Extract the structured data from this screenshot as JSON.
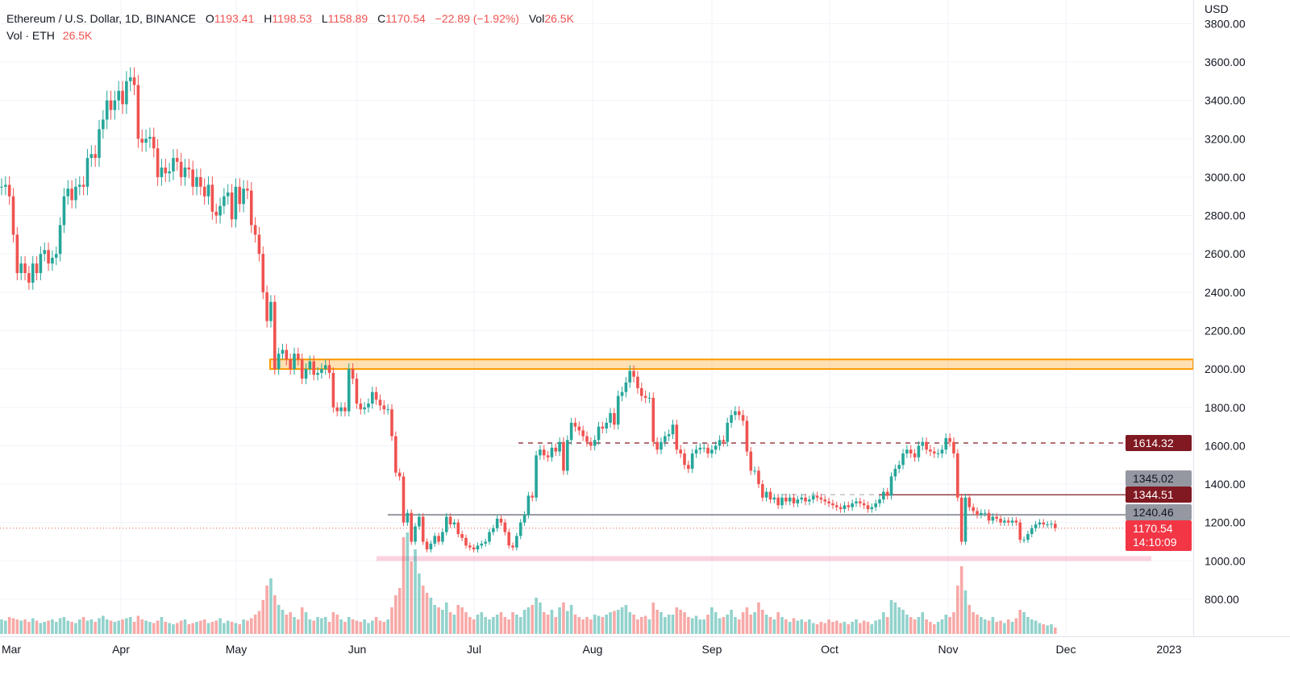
{
  "header": {
    "symbol": "Ethereum / U.S. Dollar, 1D, BINANCE",
    "o_label": "O",
    "o_value": "1193.41",
    "h_label": "H",
    "h_value": "1198.53",
    "l_label": "L",
    "l_value": "1158.89",
    "c_label": "C",
    "c_value": "1170.54",
    "change": "−22.89 (−1.92%)",
    "vol_label": "Vol",
    "vol_value": "26.5K",
    "vol_row_label": "Vol · ETH",
    "vol_row_value": "26.5K"
  },
  "price_axis": {
    "currency": "USD",
    "ticks": [
      "3800.00",
      "3600.00",
      "3400.00",
      "3200.00",
      "3000.00",
      "2800.00",
      "2600.00",
      "2400.00",
      "2200.00",
      "2000.00",
      "1800.00",
      "1600.00",
      "1400.00",
      "1200.00",
      "1000.00",
      "800.00"
    ]
  },
  "price_tags": [
    {
      "value": "1614.32",
      "bg": "#801922",
      "fg": "#ffffff"
    },
    {
      "value": "1345.02",
      "bg": "#9598a1",
      "fg": "#131722"
    },
    {
      "value": "1344.51",
      "bg": "#801922",
      "fg": "#ffffff"
    },
    {
      "value": "1240.46",
      "bg": "#9598a1",
      "fg": "#131722"
    },
    {
      "value": "1170.54",
      "bg": "#f23645",
      "fg": "#ffffff",
      "countdown": "14:10:09"
    }
  ],
  "colors": {
    "up": "#26a69a",
    "down": "#ef5350",
    "zone_resistance": "#ff9800",
    "zone_support": "#f48fb1",
    "level_red": "#801922",
    "level_gray": "#9598a1"
  },
  "chart_data": {
    "type": "candlestick",
    "title": "Ethereum / U.S. Dollar, 1D, BINANCE",
    "x_ticks": [
      "Mar",
      "Apr",
      "May",
      "Jun",
      "Jul",
      "Aug",
      "Sep",
      "Oct",
      "Nov",
      "Dec",
      "2023"
    ],
    "ylim": [
      700,
      3850
    ],
    "y_scale": "linear",
    "grid": true,
    "first_open": 2950,
    "closes": [
      2950,
      2960,
      2900,
      2700,
      2500,
      2550,
      2500,
      2450,
      2550,
      2500,
      2600,
      2620,
      2550,
      2580,
      2600,
      2750,
      2900,
      2940,
      2880,
      2950,
      2960,
      2950,
      3100,
      3120,
      3100,
      3250,
      3300,
      3400,
      3350,
      3400,
      3450,
      3380,
      3500,
      3520,
      3480,
      3200,
      3180,
      3200,
      3210,
      3150,
      3000,
      3050,
      3020,
      3030,
      3100,
      3080,
      3000,
      3050,
      3040,
      2950,
      3000,
      2950,
      2900,
      2960,
      2820,
      2800,
      2850,
      2900,
      2920,
      2780,
      2950,
      2860,
      2940,
      2930,
      2750,
      2700,
      2600,
      2400,
      2250,
      2350,
      2000,
      2080,
      2100,
      2050,
      2000,
      2080,
      2050,
      1950,
      2000,
      2040,
      1970,
      1980,
      2000,
      2020,
      1980,
      1800,
      1780,
      1800,
      1780,
      2000,
      1950,
      1820,
      1790,
      1800,
      1820,
      1880,
      1840,
      1810,
      1790,
      1790,
      1650,
      1460,
      1440,
      1200,
      1250,
      1100,
      1180,
      1230,
      1100,
      1060,
      1090,
      1130,
      1100,
      1150,
      1230,
      1190,
      1200,
      1140,
      1120,
      1080,
      1070,
      1060,
      1080,
      1090,
      1100,
      1150,
      1170,
      1220,
      1200,
      1150,
      1080,
      1070,
      1130,
      1200,
      1240,
      1340,
      1330,
      1550,
      1580,
      1550,
      1540,
      1590,
      1570,
      1620,
      1470,
      1630,
      1720,
      1700,
      1680,
      1650,
      1620,
      1600,
      1630,
      1700,
      1690,
      1720,
      1770,
      1710,
      1860,
      1880,
      1930,
      1990,
      1960,
      1900,
      1860,
      1850,
      1850,
      1620,
      1580,
      1620,
      1650,
      1660,
      1710,
      1580,
      1560,
      1500,
      1480,
      1560,
      1580,
      1590,
      1590,
      1560,
      1580,
      1600,
      1630,
      1620,
      1720,
      1760,
      1780,
      1760,
      1730,
      1570,
      1470,
      1470,
      1400,
      1330,
      1360,
      1320,
      1330,
      1290,
      1330,
      1310,
      1330,
      1300,
      1320,
      1330,
      1310,
      1320,
      1340,
      1330,
      1320,
      1310,
      1300,
      1290,
      1280,
      1270,
      1290,
      1280,
      1300,
      1310,
      1300,
      1290,
      1270,
      1280,
      1300,
      1320,
      1360,
      1340,
      1440,
      1480,
      1500,
      1560,
      1580,
      1560,
      1540,
      1600,
      1620,
      1580,
      1570,
      1560,
      1560,
      1580,
      1640,
      1620,
      1560,
      1330,
      1100,
      1330,
      1280,
      1260,
      1240,
      1250,
      1250,
      1210,
      1230,
      1220,
      1200,
      1210,
      1200,
      1210,
      1200,
      1110,
      1110,
      1140,
      1170,
      1190,
      1200,
      1190,
      1190,
      1193.41,
      1170.54
    ],
    "volumes_k": [
      60,
      55,
      70,
      65,
      60,
      55,
      60,
      50,
      65,
      55,
      45,
      50,
      55,
      60,
      50,
      65,
      70,
      55,
      50,
      45,
      60,
      70,
      55,
      60,
      50,
      65,
      75,
      60,
      55,
      50,
      55,
      60,
      65,
      70,
      50,
      75,
      60,
      55,
      50,
      45,
      55,
      70,
      50,
      45,
      40,
      45,
      55,
      60,
      40,
      45,
      50,
      55,
      60,
      45,
      50,
      55,
      65,
      45,
      55,
      50,
      45,
      40,
      60,
      55,
      65,
      80,
      95,
      140,
      200,
      230,
      160,
      120,
      100,
      80,
      90,
      70,
      60,
      110,
      90,
      60,
      55,
      70,
      65,
      70,
      50,
      90,
      80,
      60,
      50,
      70,
      60,
      55,
      50,
      60,
      45,
      55,
      70,
      55,
      50,
      60,
      110,
      160,
      190,
      400,
      420,
      300,
      350,
      250,
      200,
      170,
      150,
      120,
      110,
      100,
      130,
      90,
      80,
      120,
      110,
      90,
      70,
      60,
      80,
      90,
      70,
      60,
      70,
      80,
      90,
      70,
      60,
      90,
      80,
      70,
      100,
      110,
      120,
      150,
      130,
      90,
      80,
      100,
      70,
      110,
      130,
      95,
      120,
      80,
      70,
      60,
      70,
      60,
      80,
      75,
      70,
      80,
      90,
      95,
      100,
      110,
      120,
      90,
      80,
      60,
      70,
      75,
      60,
      130,
      100,
      90,
      70,
      80,
      80,
      110,
      100,
      90,
      70,
      65,
      75,
      60,
      60,
      80,
      110,
      90,
      65,
      70,
      80,
      100,
      70,
      60,
      90,
      110,
      80,
      90,
      130,
      100,
      80,
      70,
      60,
      90,
      70,
      60,
      50,
      65,
      55,
      60,
      50,
      60,
      45,
      40,
      50,
      45,
      60,
      50,
      55,
      45,
      50,
      40,
      50,
      60,
      45,
      55,
      50,
      40,
      55,
      60,
      90,
      70,
      140,
      130,
      110,
      100,
      80,
      70,
      60,
      70,
      90,
      60,
      50,
      40,
      50,
      60,
      80,
      70,
      90,
      200,
      280,
      180,
      120,
      90,
      80,
      70,
      60,
      55,
      70,
      50,
      55,
      45,
      60,
      50,
      65,
      100,
      90,
      70,
      60,
      55,
      45,
      40,
      35,
      40,
      26.5
    ],
    "zones": [
      {
        "name": "resistance-zone",
        "from": 2000,
        "to": 2050
      },
      {
        "name": "support-zone",
        "from": 1000,
        "to": 1025
      }
    ],
    "levels": [
      {
        "name": "dashed-resistance",
        "value": 1614.32,
        "style": "dashed"
      },
      {
        "name": "gray-dashed-level",
        "value": 1345.02,
        "style": "dashed"
      },
      {
        "name": "red-level",
        "value": 1344.51,
        "style": "solid"
      },
      {
        "name": "gray-level",
        "value": 1240.46,
        "style": "solid"
      },
      {
        "name": "last-price",
        "value": 1170.54,
        "style": "dotted"
      }
    ]
  }
}
